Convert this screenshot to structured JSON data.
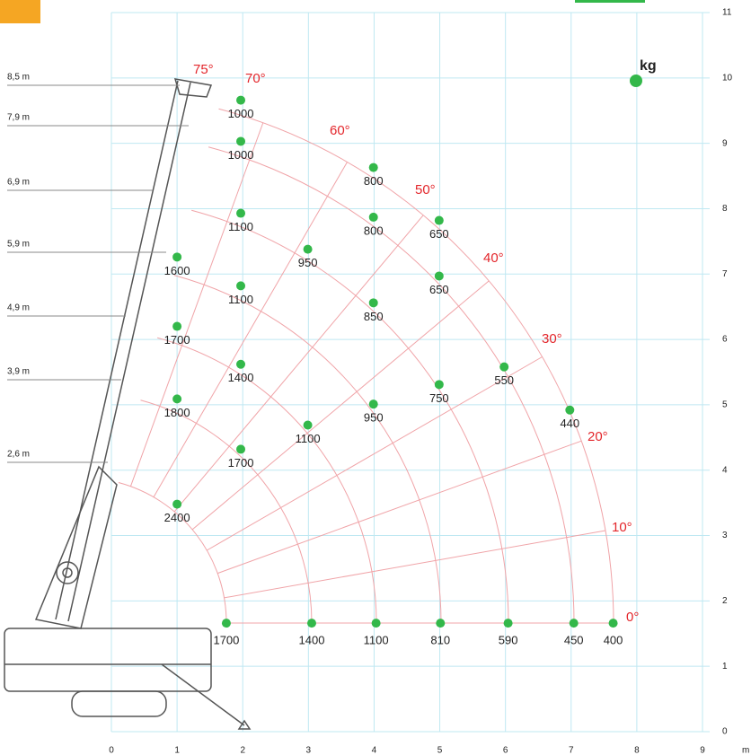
{
  "chart_data": {
    "type": "scatter",
    "xlim": [
      0,
      9
    ],
    "ylim": [
      0,
      11
    ],
    "xticks": [
      0,
      1,
      2,
      3,
      4,
      5,
      6,
      7,
      8,
      9
    ],
    "yticks": [
      0,
      1,
      2,
      3,
      4,
      5,
      6,
      7,
      8,
      9,
      10,
      11
    ],
    "x_unit": "m",
    "capacity_unit": "kg",
    "grid": true,
    "color": "#33b84a",
    "boom_lengths": [
      "8,5 m",
      "7,9 m",
      "6,9 m",
      "5,9 m",
      "4,9 m",
      "3,9 m",
      "2,6 m"
    ],
    "angles": [
      "75°",
      "70°",
      "60°",
      "50°",
      "40°",
      "30°",
      "20°",
      "10°",
      "0°"
    ],
    "points": {
      "x": [
        1.75,
        3.05,
        4.03,
        5.01,
        6.04,
        7.04,
        7.64,
        1.97,
        1.97,
        3.99,
        3.99,
        4.99,
        1.97,
        2.99,
        1.0,
        4.99,
        1.97,
        3.99,
        1.0,
        1.97,
        5.98,
        4.99,
        6.98,
        1.0,
        3.99,
        2.99,
        1.97,
        1.0
      ],
      "y": [
        1.66,
        1.66,
        1.66,
        1.66,
        1.66,
        1.66,
        1.66,
        9.66,
        9.03,
        8.63,
        7.87,
        7.82,
        7.93,
        7.38,
        7.26,
        6.97,
        6.82,
        6.56,
        6.2,
        5.62,
        5.58,
        5.31,
        4.92,
        5.09,
        5.01,
        4.69,
        4.32,
        3.48
      ],
      "capacity": [
        1700,
        1400,
        1100,
        810,
        590,
        450,
        400,
        1000,
        1000,
        800,
        800,
        650,
        1100,
        950,
        1600,
        650,
        1100,
        850,
        1700,
        1400,
        550,
        750,
        440,
        1800,
        950,
        1100,
        1700,
        2400
      ]
    }
  }
}
